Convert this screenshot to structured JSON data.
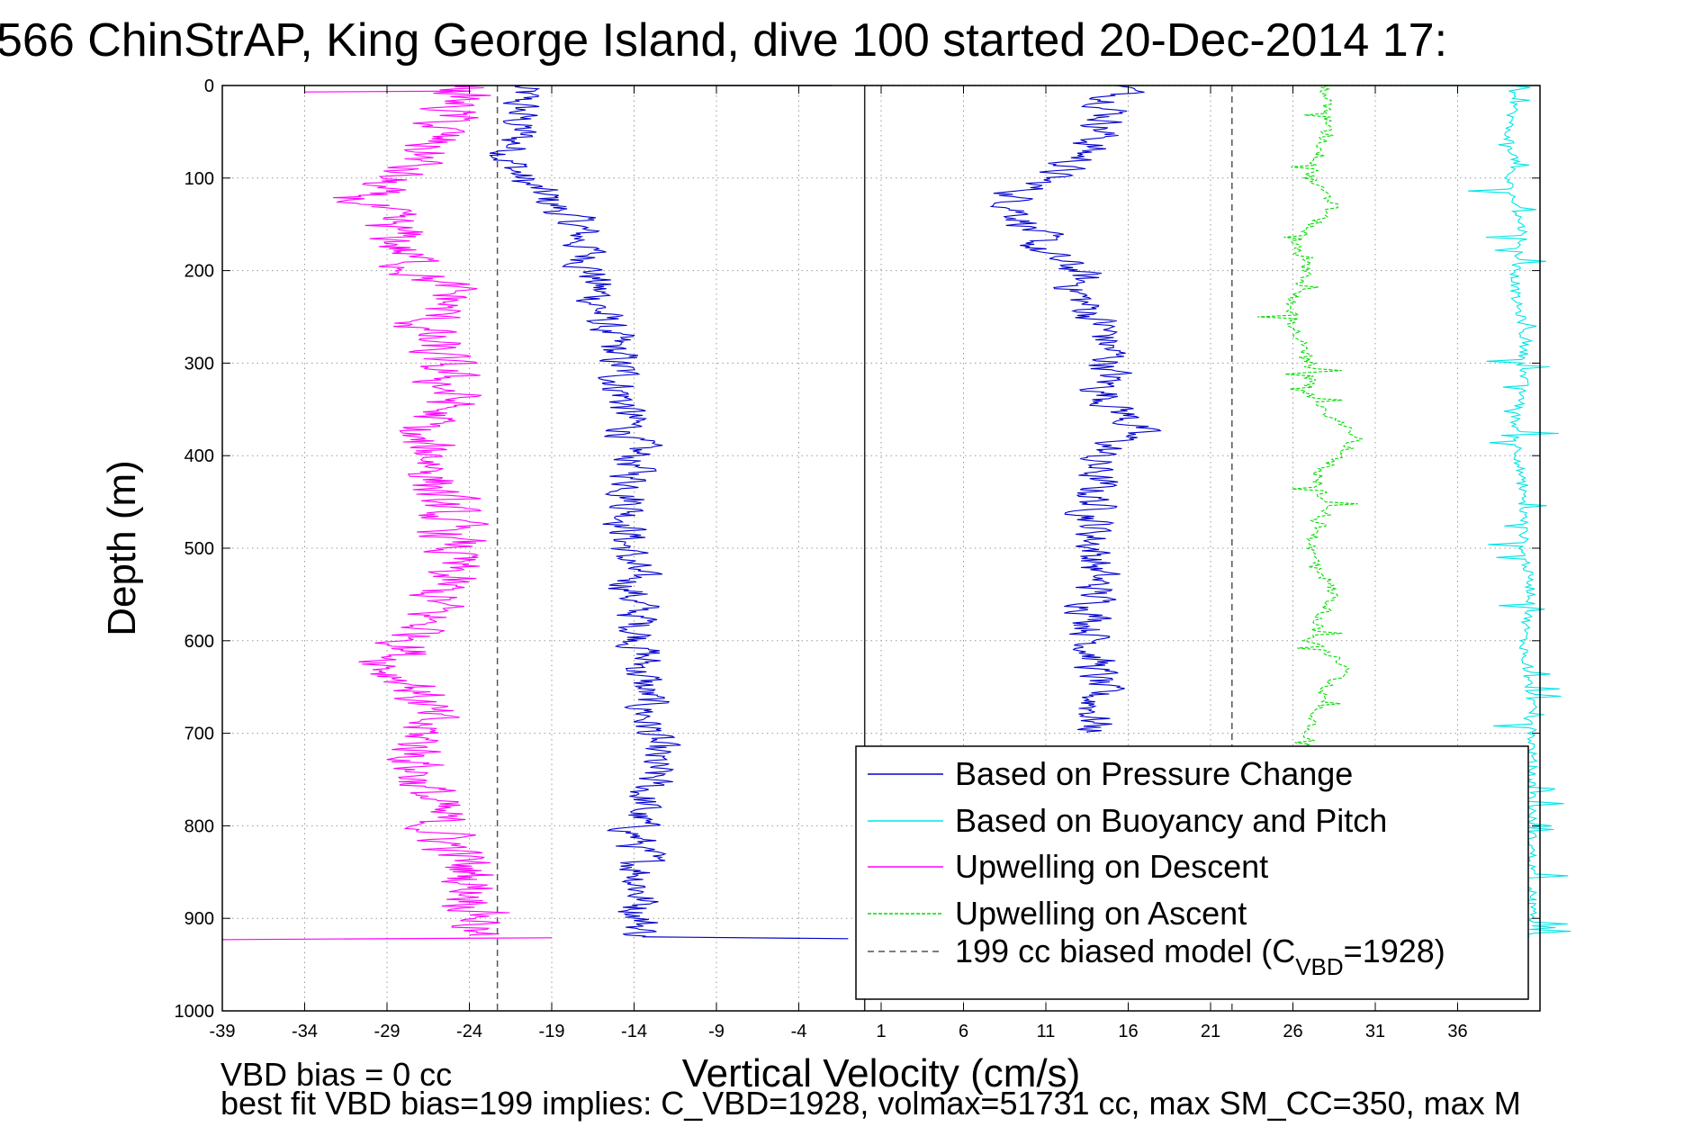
{
  "chart_data": {
    "type": "line",
    "title": "566 ChinStrAP, King George Island, dive 100 started 20-Dec-2014 17:",
    "xlabel": "Vertical Velocity (cm/s)",
    "ylabel": "Depth (m)",
    "xlim": [
      -39,
      41
    ],
    "ylim": [
      1000,
      0
    ],
    "y_reversed": true,
    "grid": true,
    "x_ticks": [
      -39,
      -34,
      -29,
      -24,
      -19,
      -14,
      -9,
      -4,
      1,
      6,
      11,
      16,
      21,
      26,
      31,
      36
    ],
    "x_tick_labels": [
      "-39",
      "-34",
      "-29",
      "-24",
      "-19",
      "-14",
      "-9",
      "-4",
      "1",
      "6",
      "11",
      "16",
      "21",
      "26",
      "31",
      "36"
    ],
    "y_ticks": [
      0,
      100,
      200,
      300,
      400,
      500,
      600,
      700,
      800,
      900,
      1000
    ],
    "y_tick_labels": [
      "0",
      "100",
      "200",
      "300",
      "400",
      "500",
      "600",
      "700",
      "800",
      "900",
      "1000"
    ],
    "legend_position": "bottom-right",
    "series": [
      {
        "name": "Based on Pressure Change",
        "color": "#0000cc",
        "style": "solid",
        "descent_depth": [
          0,
          20,
          50,
          80,
          100,
          120,
          150,
          200,
          250,
          300,
          350,
          400,
          450,
          500,
          550,
          600,
          650,
          700,
          750,
          800,
          850,
          900,
          920
        ],
        "descent_velocity": [
          -21,
          -21,
          -21,
          -21.5,
          -21,
          -19.5,
          -17.5,
          -16.5,
          -16,
          -15,
          -14.5,
          -14,
          -14,
          -14.5,
          -14,
          -13.5,
          -13.5,
          -13,
          -13,
          -14,
          -13.5,
          -13.5,
          -13.5
        ],
        "ascent_depth": [
          0,
          10,
          50,
          80,
          100,
          120,
          150,
          180,
          200,
          230,
          260,
          300,
          330,
          370,
          400,
          450,
          500,
          550,
          600,
          650,
          700
        ],
        "ascent_velocity": [
          16,
          15.5,
          14.5,
          13,
          11,
          9,
          10,
          10.5,
          13,
          13,
          14.5,
          15,
          14.5,
          16.5,
          14,
          14,
          14,
          14,
          14,
          14,
          14
        ]
      },
      {
        "name": "Based on Buoyancy and Pitch",
        "color": "#00e5e5",
        "style": "solid",
        "depth": [
          0,
          20,
          50,
          80,
          100,
          130,
          160,
          200,
          230,
          260,
          300,
          330,
          360,
          460,
          500,
          550,
          600,
          670,
          700,
          750,
          800,
          880,
          920
        ],
        "velocity": [
          39,
          39.5,
          39,
          39.5,
          39,
          39.5,
          40,
          39.5,
          39.5,
          40,
          40,
          40,
          39.5,
          40,
          40,
          40.5,
          40,
          40.5,
          40.5,
          40.5,
          40.5,
          40.5,
          40.5
        ]
      },
      {
        "name": "Upwelling on Descent",
        "color": "#ff00ff",
        "style": "solid",
        "depth": [
          0,
          20,
          50,
          80,
          100,
          120,
          150,
          180,
          200,
          230,
          260,
          300,
          340,
          380,
          400,
          450,
          500,
          550,
          600,
          630,
          650,
          700,
          750,
          800,
          850,
          900,
          920
        ],
        "velocity": [
          -24,
          -25,
          -26,
          -27,
          -29,
          -31,
          -29,
          -28,
          -27,
          -25,
          -27,
          -26,
          -25,
          -28,
          -26,
          -26,
          -25,
          -26,
          -27,
          -29,
          -27,
          -27,
          -27,
          -26,
          -24,
          -23,
          -24
        ]
      },
      {
        "name": "Upwelling on Ascent",
        "color": "#00dd00",
        "style": "dashed",
        "depth": [
          0,
          20,
          50,
          80,
          100,
          130,
          170,
          200,
          230,
          260,
          300,
          340,
          380,
          420,
          460,
          500,
          550,
          600,
          630,
          650,
          700,
          720
        ],
        "velocity": [
          28,
          28,
          28,
          27.5,
          27,
          28.5,
          26,
          27,
          26,
          26,
          27,
          27,
          30,
          27.5,
          28,
          27,
          28.5,
          27,
          29.5,
          28,
          27,
          27
        ]
      },
      {
        "name": "199 cc biased model (C",
        "name_subscript": "VBD",
        "name_suffix": "=1928)",
        "color": "#555555",
        "style": "dashed",
        "vertical_lines_at_x": [
          -22.3,
          22.3
        ]
      }
    ],
    "reference_line_x": 0
  },
  "footer": {
    "line1": "VBD bias = 0 cc",
    "line2": "best fit VBD bias=199 implies: C_VBD=1928, volmax=51731 cc, max SM_CC=350, max M"
  }
}
